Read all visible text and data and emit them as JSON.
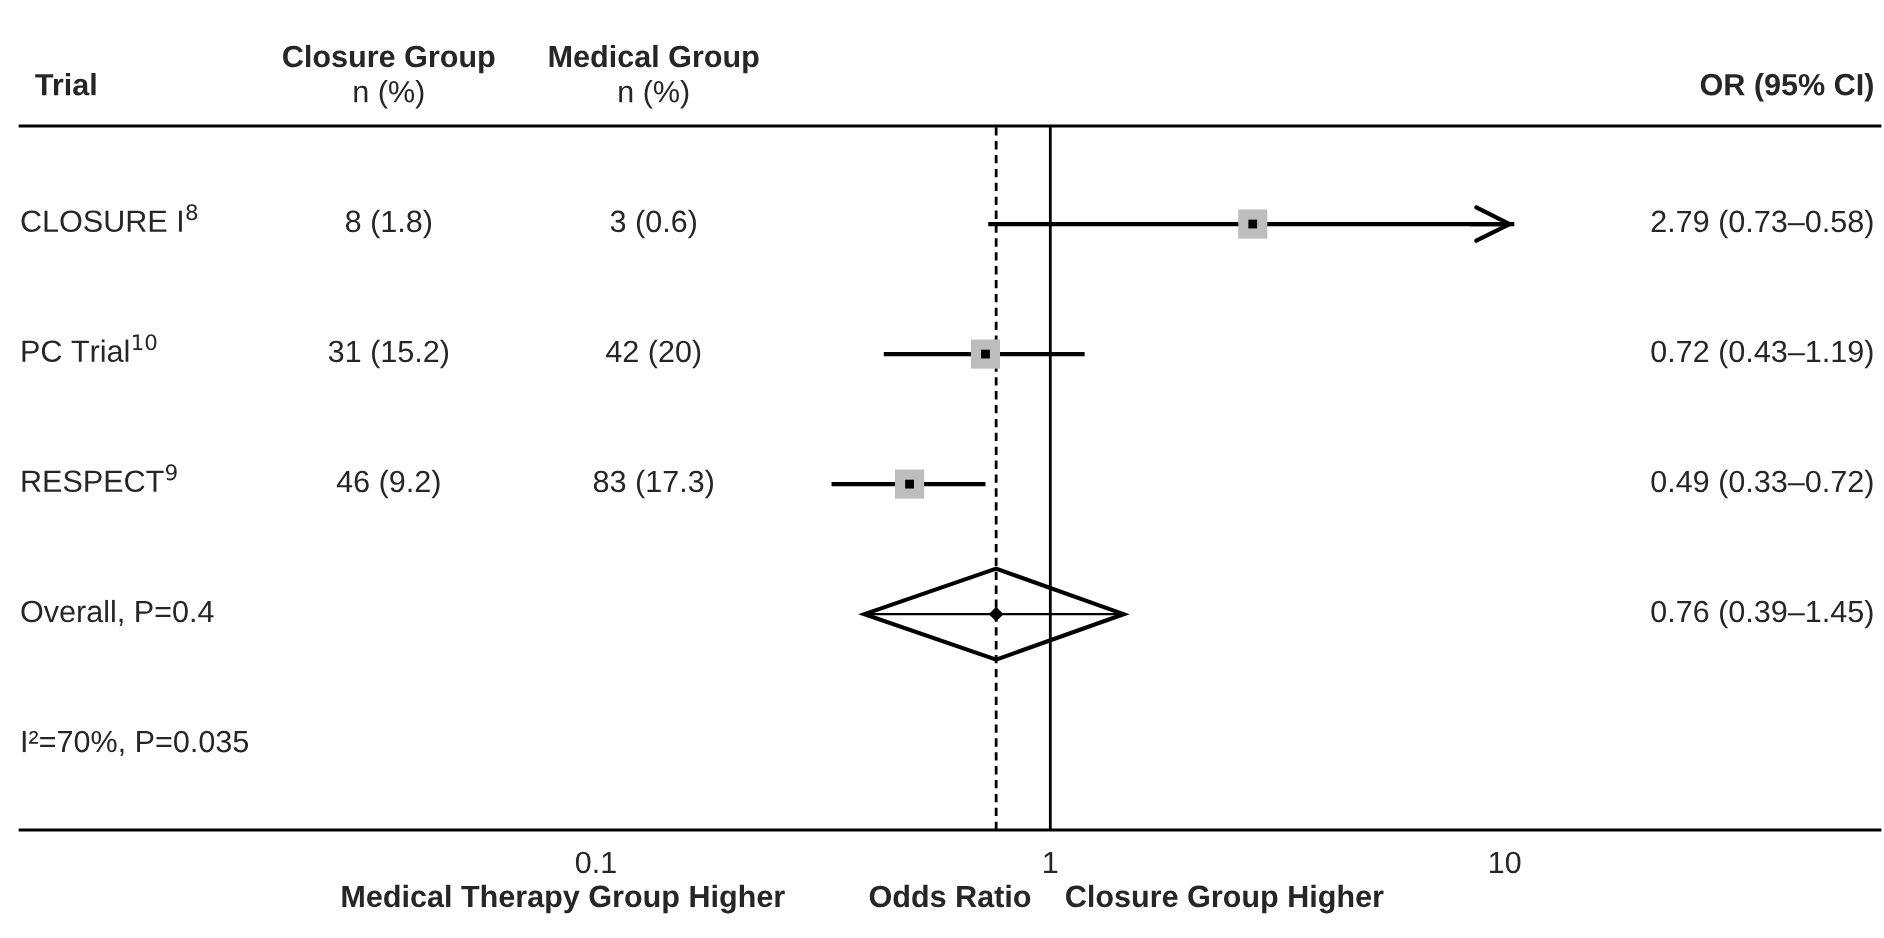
{
  "chart_data": {
    "type": "scatter",
    "orientation": "horizontal",
    "ylabel": "Trial",
    "xlabel": "Odds Ratio",
    "categories": [
      "CLOSURE I$^{8}$",
      "PC Trial$^{10}$",
      "RESPECT$^{9}$",
      "Overall, P=0.4"
    ],
    "series": [
      {
        "color": "#000000",
        "marker": "square",
        "values": [
          2.79,
          0.72,
          0.49,
          null
        ],
        "errors": [
          [
            0.73,
            10.5
          ],
          [
            0.43,
            1.19
          ],
          [
            0.33,
            0.72
          ],
          null
        ]
      },
      {
        "color": "#000000",
        "marker": "diamond",
        "values": [
          null,
          null,
          null,
          0.76
        ],
        "errors": [
          null,
          null,
          null,
          [
            0.39,
            1.45
          ]
        ]
      }
    ],
    "annotations": [
      "Closure Group\nn (%)",
      "Medical Group\nn (%)",
      "OR (95% CI)",
      "8 (1.8)",
      "3 (0.6)",
      "2.79 (0.73–0.58)",
      "31 (15.2)",
      "42 (20)",
      "0.72 (0.43–1.19)",
      "46 (9.2)",
      "83 (17.3)",
      "0.49 (0.33–0.72)",
      "0.76 (0.39–1.45)",
      "Medical Therapy Group Higher",
      "Closure Group Higher",
      "I²=70%, P=0.035"
    ],
    "ref_lines": [
      {
        "axis": "x",
        "value": 0.76,
        "line_style": "dashed"
      },
      {
        "axis": "x",
        "value": 1,
        "line_style": "solid"
      }
    ],
    "log": "x",
    "xlim": [
      0.0054,
      67
    ],
    "xticks": [
      0.1,
      1,
      10
    ],
    "tick_labels": "x",
    "grid": false,
    "legend": false
  }
}
